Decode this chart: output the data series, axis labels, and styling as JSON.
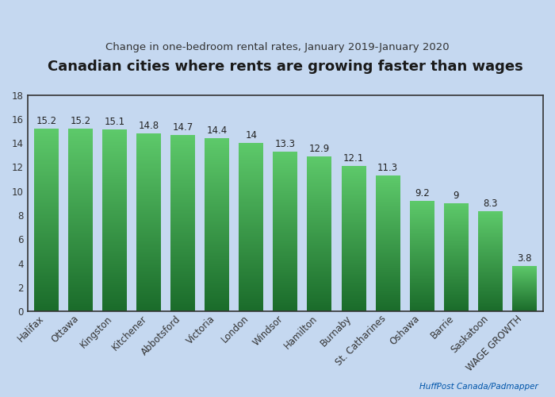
{
  "title": "Canadian cities where rents are growing faster than wages",
  "subtitle": "Change in one-bedroom rental rates, January 2019-January 2020",
  "categories": [
    "Halifax",
    "Ottawa",
    "Kingston",
    "Kitchener",
    "Abbotsford",
    "Victoria",
    "London",
    "Windsor",
    "Hamilton",
    "Burnaby",
    "St. Catharines",
    "Oshawa",
    "Barrie",
    "Saskatoon",
    "WAGE GROWTH"
  ],
  "values": [
    15.2,
    15.2,
    15.1,
    14.8,
    14.7,
    14.4,
    14.0,
    13.3,
    12.9,
    12.1,
    11.3,
    9.2,
    9.0,
    8.3,
    3.8
  ],
  "bar_color_top": "#5dc96a",
  "bar_color_bottom": "#1a6b2a",
  "ylim": [
    0,
    18
  ],
  "yticks": [
    0,
    2,
    4,
    6,
    8,
    10,
    12,
    14,
    16,
    18
  ],
  "bg_top": "#c5d8f0",
  "bg_bottom": "#e8f2fc",
  "title_fontsize": 13,
  "subtitle_fontsize": 9.5,
  "label_fontsize": 8.5,
  "tick_fontsize": 8.5,
  "credit": "HuffPost Canada/Padmapper",
  "credit_color": "#0055aa"
}
